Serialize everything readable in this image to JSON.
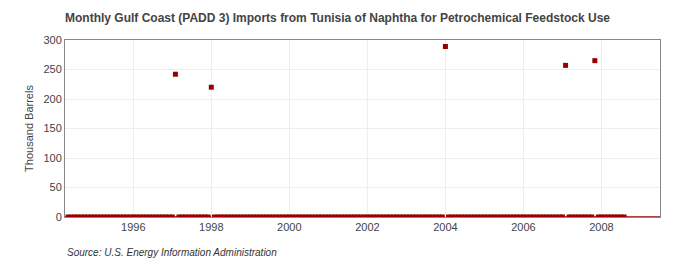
{
  "chart_data": {
    "type": "scatter",
    "title": "Monthly Gulf Coast (PADD 3) Imports from Tunisia of Naphtha for Petrochemical Feedstock Use",
    "ylabel": "Thousand Barrels",
    "source": "Source: U.S. Energy Information Administration",
    "color": "#990000",
    "marker": "square",
    "baseline": 0,
    "grid": true,
    "xlim": [
      1994.25,
      2009.5
    ],
    "xticks": [
      1996,
      1998,
      2000,
      2002,
      2004,
      2006,
      2008
    ],
    "ylim": [
      0,
      300
    ],
    "yticks": [
      0,
      50,
      100,
      150,
      200,
      250,
      300
    ],
    "x": [
      1994.33,
      1994.42,
      1994.5,
      1994.58,
      1994.67,
      1994.75,
      1994.83,
      1994.92,
      1995.0,
      1995.08,
      1995.17,
      1995.25,
      1995.33,
      1995.42,
      1995.5,
      1995.58,
      1995.67,
      1995.75,
      1995.83,
      1995.92,
      1996.0,
      1996.08,
      1996.17,
      1996.25,
      1996.33,
      1996.42,
      1996.5,
      1996.58,
      1996.67,
      1996.75,
      1996.83,
      1996.92,
      1997.0,
      1997.08,
      1997.17,
      1997.25,
      1997.33,
      1997.42,
      1997.5,
      1997.58,
      1997.67,
      1997.75,
      1997.83,
      1997.92,
      1998.0,
      1998.08,
      1998.17,
      1998.25,
      1998.33,
      1998.42,
      1998.5,
      1998.58,
      1998.67,
      1998.75,
      1998.83,
      1998.92,
      1999.0,
      1999.08,
      1999.17,
      1999.25,
      1999.33,
      1999.42,
      1999.5,
      1999.58,
      1999.67,
      1999.75,
      1999.83,
      1999.92,
      2000.0,
      2000.08,
      2000.17,
      2000.25,
      2000.33,
      2000.42,
      2000.5,
      2000.58,
      2000.67,
      2000.75,
      2000.83,
      2000.92,
      2001.0,
      2001.08,
      2001.17,
      2001.25,
      2001.33,
      2001.42,
      2001.5,
      2001.58,
      2001.67,
      2001.75,
      2001.83,
      2001.92,
      2002.0,
      2002.08,
      2002.17,
      2002.25,
      2002.33,
      2002.42,
      2002.5,
      2002.58,
      2002.67,
      2002.75,
      2002.83,
      2002.92,
      2003.0,
      2003.08,
      2003.17,
      2003.25,
      2003.33,
      2003.42,
      2003.5,
      2003.58,
      2003.67,
      2003.75,
      2003.83,
      2003.92,
      2004.0,
      2004.08,
      2004.17,
      2004.25,
      2004.33,
      2004.42,
      2004.5,
      2004.58,
      2004.67,
      2004.75,
      2004.83,
      2004.92,
      2005.0,
      2005.08,
      2005.17,
      2005.25,
      2005.33,
      2005.42,
      2005.5,
      2005.58,
      2005.67,
      2005.75,
      2005.83,
      2005.92,
      2006.0,
      2006.08,
      2006.17,
      2006.25,
      2006.33,
      2006.42,
      2006.5,
      2006.58,
      2006.67,
      2006.75,
      2006.83,
      2006.92,
      2007.0,
      2007.08,
      2007.17,
      2007.25,
      2007.33,
      2007.42,
      2007.5,
      2007.58,
      2007.67,
      2007.75,
      2007.83,
      2007.92,
      2008.0,
      2008.08,
      2008.17,
      2008.25,
      2008.33,
      2008.42,
      2008.5,
      2008.58
    ],
    "values": [
      0,
      0,
      0,
      0,
      0,
      0,
      0,
      0,
      0,
      0,
      0,
      0,
      0,
      0,
      0,
      0,
      0,
      0,
      0,
      0,
      0,
      0,
      0,
      0,
      0,
      0,
      0,
      0,
      0,
      0,
      0,
      0,
      0,
      242,
      0,
      0,
      0,
      0,
      0,
      0,
      0,
      0,
      0,
      0,
      220,
      0,
      0,
      0,
      0,
      0,
      0,
      0,
      0,
      0,
      0,
      0,
      0,
      0,
      0,
      0,
      0,
      0,
      0,
      0,
      0,
      0,
      0,
      0,
      0,
      0,
      0,
      0,
      0,
      0,
      0,
      0,
      0,
      0,
      0,
      0,
      0,
      0,
      0,
      0,
      0,
      0,
      0,
      0,
      0,
      0,
      0,
      0,
      0,
      0,
      0,
      0,
      0,
      0,
      0,
      0,
      0,
      0,
      0,
      0,
      0,
      0,
      0,
      0,
      0,
      0,
      0,
      0,
      0,
      0,
      0,
      0,
      289,
      0,
      0,
      0,
      0,
      0,
      0,
      0,
      0,
      0,
      0,
      0,
      0,
      0,
      0,
      0,
      0,
      0,
      0,
      0,
      0,
      0,
      0,
      0,
      0,
      0,
      0,
      0,
      0,
      0,
      0,
      0,
      0,
      0,
      0,
      0,
      0,
      257,
      0,
      0,
      0,
      0,
      0,
      0,
      0,
      0,
      265,
      0,
      0,
      0,
      0,
      0,
      0,
      0,
      0,
      0
    ]
  }
}
